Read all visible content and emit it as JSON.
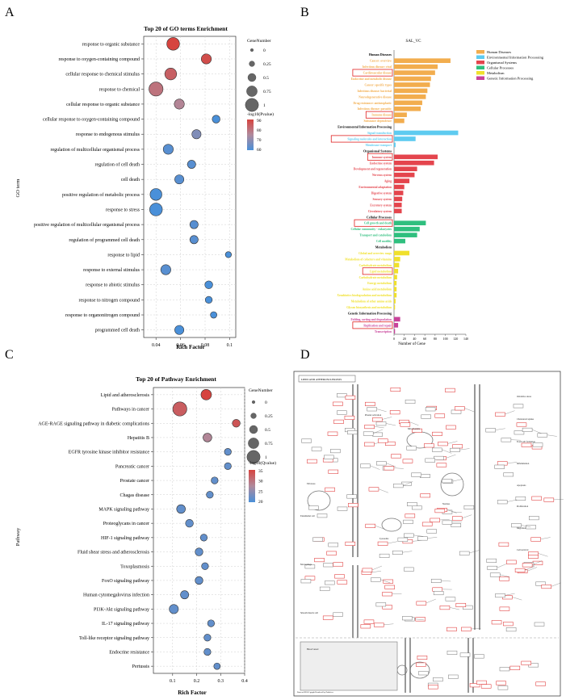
{
  "panel_letters": [
    "A",
    "B",
    "C",
    "D"
  ],
  "chart_data": [
    {
      "id": "A",
      "type": "scatter",
      "title": "Top 20 of GO terms Enrichment",
      "xlabel": "Rich Factor",
      "ylabel": "GO term",
      "xlim": [
        0.03,
        0.105
      ],
      "xticks": [
        0.04,
        0.06,
        0.08,
        0.1
      ],
      "xtick_labels": [
        "0.04",
        "0.06",
        "0.08",
        "0.1"
      ],
      "size_legend": {
        "title": "GeneNumber",
        "labels": [
          "0",
          "0.25",
          "0.5",
          "0.75",
          "1"
        ]
      },
      "color_legend": {
        "title": "-log10(Pvalue)",
        "min": 60,
        "max": 90,
        "labels": [
          "90",
          "80",
          "70",
          "60"
        ]
      },
      "terms": [
        "response to organic substance",
        "response to oxygen-containing compound",
        "cellular response to chemical stimulus",
        "response to chemical",
        "cellular response to organic substance",
        "cellular response to oxygen-containing compound",
        "response to endogenous stimulus",
        "regulation of multicellular organismal process",
        "regulation of cell death",
        "cell death",
        "positive regulation of metabolic process",
        "response to stress",
        "positive regulation of multicellular organismal process",
        "regulation of programmed cell death",
        "response to lipid",
        "response to external stimulus",
        "response to abiotic stimulus",
        "response to nitrogen compound",
        "response to organonitrogen compound",
        "programmed cell death"
      ],
      "rich_factor": [
        0.054,
        0.081,
        0.052,
        0.04,
        0.059,
        0.089,
        0.073,
        0.05,
        0.069,
        0.059,
        0.04,
        0.04,
        0.071,
        0.071,
        0.099,
        0.048,
        0.083,
        0.083,
        0.087,
        0.059
      ],
      "gene_number": [
        0.85,
        0.55,
        0.75,
        1.0,
        0.55,
        0.3,
        0.45,
        0.55,
        0.35,
        0.45,
        0.75,
        0.85,
        0.35,
        0.35,
        0.1,
        0.55,
        0.3,
        0.2,
        0.15,
        0.45
      ],
      "neg_log_p": [
        92,
        88,
        84,
        80,
        76,
        60,
        68,
        62,
        62,
        62,
        60,
        60,
        62,
        62,
        60,
        62,
        60,
        60,
        60,
        60
      ]
    },
    {
      "id": "B",
      "type": "bar",
      "title": "SAL_VC",
      "xlabel": "Number of Gene",
      "xlim": [
        0,
        140
      ],
      "xticks": [
        0,
        20,
        40,
        60,
        80,
        100,
        120,
        140
      ],
      "legend": [
        "Human Diseases",
        "Environmental Information Processing",
        "Organismal Systems",
        "Cellular Processes",
        "Metabolism",
        "Genetic Information Processing"
      ],
      "colors": [
        "#f2ad4e",
        "#5ecbf0",
        "#e4454d",
        "#2fbf7e",
        "#f0e02c",
        "#c8439a"
      ],
      "groups": [
        {
          "name": "Human Diseases",
          "color": "#f2ad4e",
          "labels": [
            "Cancer: overview",
            "Infectious disease: viral",
            "Cardiovascular disease",
            "Endocrine and metabolic disease",
            "Cancer: specific types",
            "Infectious disease: bacterial",
            "Neurodegenerative disease",
            "Drug resistance: antineoplastic",
            "Infectious disease: parasitic",
            "Immune disease",
            "Substance dependence"
          ],
          "values": [
            110,
            85,
            80,
            72,
            70,
            65,
            62,
            55,
            52,
            25,
            20
          ]
        },
        {
          "name": "Environmental Information Processing",
          "color": "#5ecbf0",
          "labels": [
            "Signal transduction",
            "Signaling molecules and interaction",
            "Membrane transport"
          ],
          "values": [
            125,
            42,
            3
          ]
        },
        {
          "name": "Organismal Systems",
          "color": "#e4454d",
          "labels": [
            "Immune system",
            "Endocrine system",
            "Development and regeneration",
            "Nervous system",
            "Aging",
            "Environmental adaptation",
            "Digestive system",
            "Sensory system",
            "Excretory system",
            "Circulatory system"
          ],
          "values": [
            85,
            78,
            45,
            40,
            30,
            20,
            18,
            16,
            15,
            15
          ]
        },
        {
          "name": "Cellular Processes",
          "color": "#2fbf7e",
          "labels": [
            "Cell growth and death",
            "Cellular community - eukaryotes",
            "Transport and catabolism",
            "Cell motility"
          ],
          "values": [
            62,
            50,
            45,
            22
          ]
        },
        {
          "name": "Metabolism",
          "color": "#f0e02c",
          "labels": [
            "Global and overview maps",
            "Metabolism of cofactors and vitamins",
            "Carbohydrate metabolism",
            "Lipid metabolism",
            "Carbohydrate metabolism",
            "Energy metabolism",
            "Amino acid metabolism",
            "Xenobiotics biodegradation and metabolism",
            "Metabolism of other amino acids",
            "Glycan biosynthesis and metabolism"
          ],
          "values": [
            30,
            12,
            10,
            8,
            6,
            5,
            5,
            5,
            3,
            2
          ]
        },
        {
          "name": "Genetic Information Processing",
          "color": "#c8439a",
          "labels": [
            "Folding, sorting and degradation",
            "Replication and repair",
            "Transcription"
          ],
          "values": [
            12,
            8,
            2
          ]
        }
      ],
      "boxed": [
        "Cardiovascular disease",
        "Immune disease",
        "Signaling molecules and interaction",
        "Immune system",
        "Cell growth and death",
        "Lipid metabolism",
        "Replication and repair"
      ]
    },
    {
      "id": "C",
      "type": "scatter",
      "title": "Top 20 of Pathway Enrichment",
      "xlabel": "Rich Factor",
      "ylabel": "Pathway",
      "xlim": [
        0.02,
        0.4
      ],
      "xticks": [
        0.1,
        0.2,
        0.3,
        0.4
      ],
      "xtick_labels": [
        "0.1",
        "0.2",
        "0.3",
        "0.4"
      ],
      "size_legend": {
        "title": "GeneNumber",
        "labels": [
          "0",
          "0.25",
          "0.5",
          "0.75",
          "1"
        ]
      },
      "color_legend": {
        "title": "-log10(Qvalue)",
        "min": 18,
        "max": 35,
        "labels": [
          "35",
          "30",
          "25",
          "20"
        ]
      },
      "terms": [
        "Lipid and atherosclerosis",
        "Pathways in cancer",
        "AGE-RAGE signaling pathway in diabetic complications",
        "Hepatitis B",
        "EGFR tyrosine kinase inhibitor resistance",
        "Pancreatic cancer",
        "Prostate cancer",
        "Chagas disease",
        "MAPK signaling pathway",
        "Proteoglycans in cancer",
        "HIF-1 signaling pathway",
        "Fluid shear stress and atherosclerosis",
        "Toxoplasmosis",
        "FoxO signaling pathway",
        "Human cytomegalovirus infection",
        "PI3K-Akt signaling pathway",
        "IL-17 signaling pathway",
        "Toll-like receptor signaling pathway",
        "Endocrine resistance",
        "Pertussis"
      ],
      "rich_factor": [
        0.24,
        0.13,
        0.365,
        0.245,
        0.33,
        0.33,
        0.275,
        0.255,
        0.135,
        0.17,
        0.23,
        0.21,
        0.235,
        0.21,
        0.15,
        0.105,
        0.26,
        0.245,
        0.245,
        0.285
      ],
      "gene_number": [
        0.6,
        1.0,
        0.3,
        0.4,
        0.2,
        0.2,
        0.2,
        0.2,
        0.4,
        0.3,
        0.2,
        0.3,
        0.2,
        0.3,
        0.35,
        0.45,
        0.2,
        0.2,
        0.2,
        0.15
      ],
      "neg_log_q": [
        35,
        32,
        33,
        27,
        20,
        20,
        20,
        20,
        20,
        20,
        20,
        20,
        20,
        20,
        20,
        20,
        20,
        20,
        20,
        20
      ]
    }
  ],
  "panel_d": {
    "title": "LIPID AND ATHEROSCLEROSIS",
    "labels": [
      "Oxidative stress",
      "Cholesterol uptake",
      "Foam cell formation",
      "Inflammation",
      "Apoptosis",
      "Proliferation",
      "Migration",
      "Cell survival",
      "Platelet activation",
      "ER stress",
      "Mitochondria",
      "Lysosome",
      "Nucleus",
      "Endothelial cell",
      "Macrophage",
      "Smooth muscle cell",
      "Blood vessel"
    ],
    "footer": "Data on KEGG graph\nRendered by Pathview"
  }
}
